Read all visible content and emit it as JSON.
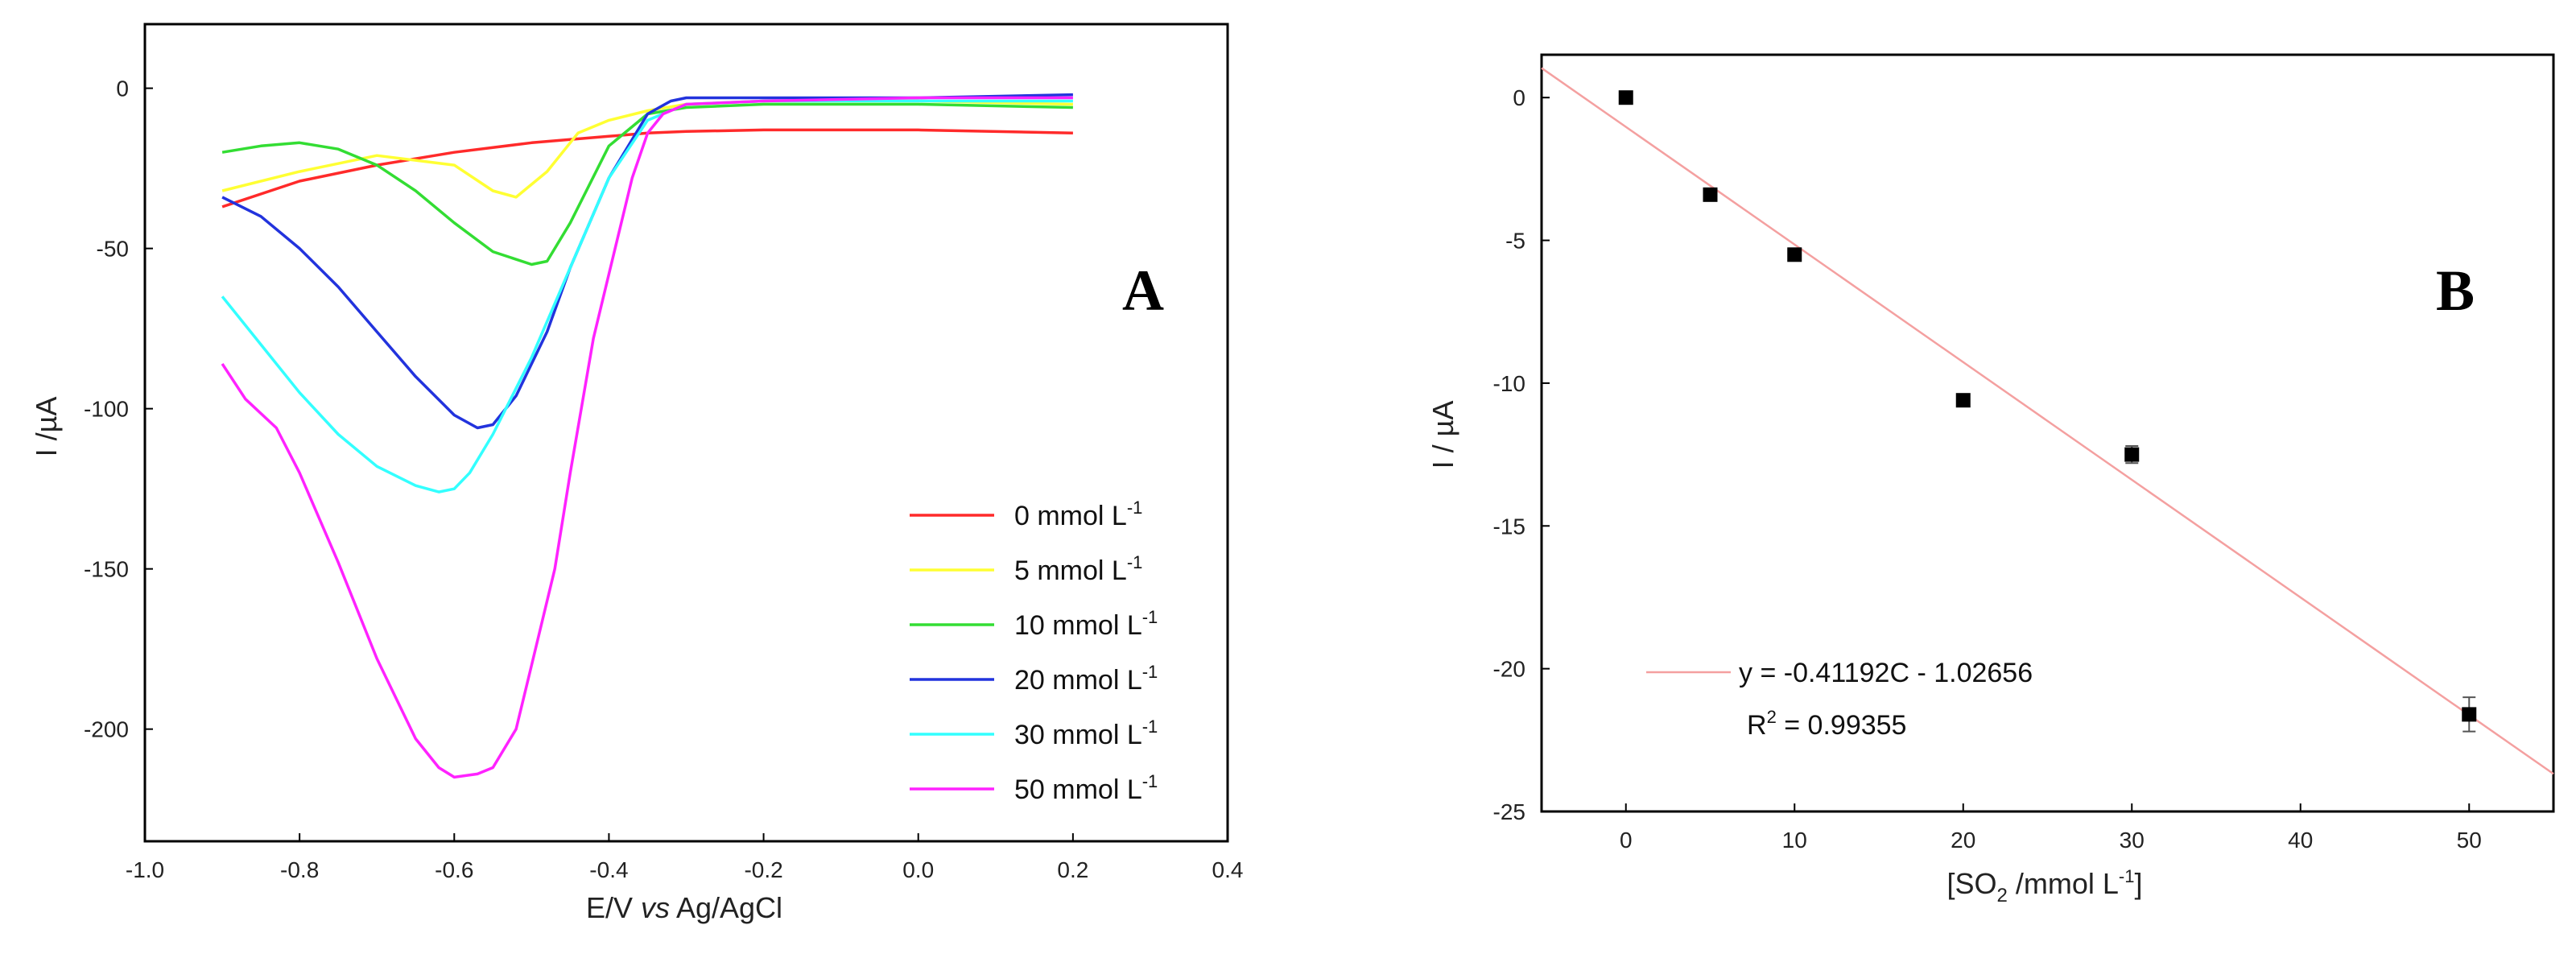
{
  "chart_data": [
    {
      "type": "line",
      "panel_label": "A",
      "xlabel_pre": "E/V ",
      "xlabel_italic": "vs",
      "xlabel_post": " Ag/AgCl",
      "ylabel": "I /µA",
      "xlim": [
        -1.0,
        0.4
      ],
      "ylim": [
        -235,
        20
      ],
      "xticks": [
        "-1.0",
        "-0.8",
        "-0.6",
        "-0.4",
        "-0.2",
        "0.0",
        "0.2",
        "0.4"
      ],
      "xtick_values": [
        -1.0,
        -0.8,
        -0.6,
        -0.4,
        -0.2,
        0.0,
        0.2,
        0.4
      ],
      "yticks": [
        "0",
        "-50",
        "-100",
        "-150",
        "-200"
      ],
      "ytick_values": [
        0,
        -50,
        -100,
        -150,
        -200
      ],
      "legend_position": "bottom-right",
      "legend_unit": "mmol L",
      "legend_sup": "-1",
      "series": [
        {
          "name": "0 mmol L-1",
          "label": "0",
          "color": "#ff2a2a",
          "x": [
            -0.9,
            -0.8,
            -0.7,
            -0.6,
            -0.5,
            -0.4,
            -0.35,
            -0.3,
            -0.2,
            0.0,
            0.2
          ],
          "y": [
            -37,
            -29,
            -24,
            -20,
            -17,
            -15,
            -14,
            -13.5,
            -13,
            -13,
            -14
          ]
        },
        {
          "name": "5 mmol L-1",
          "label": "5",
          "color": "#ffff33",
          "x": [
            -0.9,
            -0.8,
            -0.7,
            -0.6,
            -0.55,
            -0.52,
            -0.48,
            -0.44,
            -0.4,
            -0.35,
            -0.3,
            -0.2,
            0.0,
            0.2
          ],
          "y": [
            -32,
            -26,
            -21,
            -24,
            -32,
            -34,
            -26,
            -14,
            -10,
            -7,
            -5,
            -4,
            -4,
            -5
          ]
        },
        {
          "name": "10 mmol L-1",
          "label": "10",
          "color": "#33dd33",
          "x": [
            -0.9,
            -0.85,
            -0.8,
            -0.75,
            -0.7,
            -0.65,
            -0.6,
            -0.55,
            -0.5,
            -0.48,
            -0.45,
            -0.4,
            -0.35,
            -0.3,
            -0.2,
            0.0,
            0.2
          ],
          "y": [
            -20,
            -18,
            -17,
            -19,
            -24,
            -32,
            -42,
            -51,
            -55,
            -54,
            -42,
            -18,
            -8,
            -6,
            -5,
            -5,
            -6
          ]
        },
        {
          "name": "20 mmol L-1",
          "label": "20",
          "color": "#2233dd",
          "x": [
            -0.9,
            -0.85,
            -0.8,
            -0.75,
            -0.7,
            -0.65,
            -0.6,
            -0.57,
            -0.55,
            -0.52,
            -0.48,
            -0.45,
            -0.4,
            -0.35,
            -0.32,
            -0.3,
            -0.2,
            0.0,
            0.2
          ],
          "y": [
            -34,
            -40,
            -50,
            -62,
            -76,
            -90,
            -102,
            -106,
            -105,
            -96,
            -76,
            -56,
            -28,
            -8,
            -4,
            -3,
            -3,
            -3,
            -2
          ]
        },
        {
          "name": "30 mmol L-1",
          "label": "30",
          "color": "#33ffff",
          "x": [
            -0.9,
            -0.85,
            -0.8,
            -0.75,
            -0.7,
            -0.65,
            -0.62,
            -0.6,
            -0.58,
            -0.55,
            -0.5,
            -0.45,
            -0.4,
            -0.35,
            -0.3,
            -0.2,
            0.0,
            0.2
          ],
          "y": [
            -65,
            -80,
            -95,
            -108,
            -118,
            -124,
            -126,
            -125,
            -120,
            -108,
            -84,
            -56,
            -28,
            -10,
            -5,
            -4,
            -4,
            -4
          ]
        },
        {
          "name": "50 mmol L-1",
          "label": "50",
          "color": "#ff22ff",
          "x": [
            -0.9,
            -0.87,
            -0.83,
            -0.8,
            -0.75,
            -0.7,
            -0.65,
            -0.62,
            -0.6,
            -0.57,
            -0.55,
            -0.52,
            -0.5,
            -0.47,
            -0.45,
            -0.42,
            -0.4,
            -0.37,
            -0.35,
            -0.33,
            -0.3,
            -0.2,
            0.0,
            0.2
          ],
          "y": [
            -86,
            -97,
            -106,
            -120,
            -148,
            -178,
            -203,
            -212,
            -215,
            -214,
            -212,
            -200,
            -180,
            -150,
            -120,
            -78,
            -58,
            -28,
            -14,
            -8,
            -5,
            -4,
            -3,
            -3
          ]
        }
      ]
    },
    {
      "type": "scatter",
      "panel_label": "B",
      "xlabel_pre": "[SO",
      "xlabel_sub": "2",
      "xlabel_post": " /mmol L",
      "xlabel_sup": "-1",
      "xlabel_end": "]",
      "ylabel": "I / µA",
      "xlim": [
        -5,
        55
      ],
      "ylim": [
        -25,
        1.5
      ],
      "xticks": [
        "0",
        "10",
        "20",
        "30",
        "40",
        "50"
      ],
      "xtick_values": [
        0,
        10,
        20,
        30,
        40,
        50
      ],
      "yticks": [
        "0",
        "-5",
        "-10",
        "-15",
        "-20",
        "-25"
      ],
      "ytick_values": [
        0,
        -5,
        -10,
        -15,
        -20,
        -25
      ],
      "points": {
        "x": [
          0,
          5,
          10,
          20,
          30,
          50
        ],
        "y": [
          0,
          -3.4,
          -5.5,
          -10.6,
          -12.5,
          -21.6
        ],
        "error": [
          0.1,
          0.15,
          0.15,
          0.2,
          0.3,
          0.6
        ]
      },
      "fit": {
        "slope": -0.41192,
        "intercept": -1.02656,
        "color": "#f4a0a0"
      },
      "equation": "y = -0.41192C - 1.02656",
      "r2_pre": "R",
      "r2_sup": "2",
      "r2_post": " = 0.99355"
    }
  ]
}
